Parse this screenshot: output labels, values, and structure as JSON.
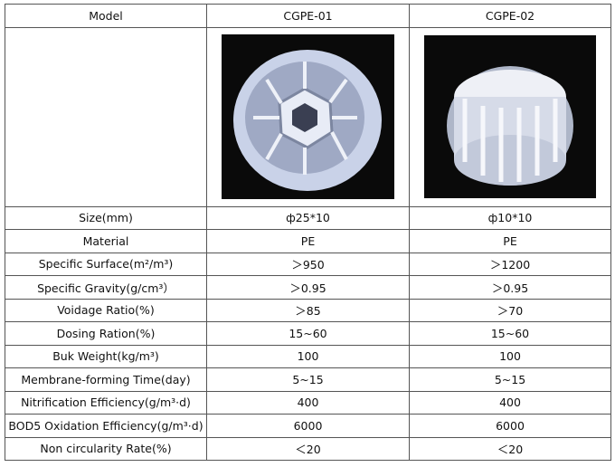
{
  "table": {
    "header": [
      "Model",
      "CGPE-01",
      "CGPE-02"
    ],
    "rows": [
      [
        "Size(mm)",
        "ф25*10",
        "ф10*10"
      ],
      [
        "Material",
        "PE",
        "PE"
      ],
      [
        "Specific Surface(m²/m³)",
        "＞950",
        "＞1200"
      ],
      [
        "Specific Gravity(g/cm³）",
        "＞0.95",
        "＞0.95"
      ],
      [
        "Voidage Ratio(%)",
        "＞85",
        "＞70"
      ],
      [
        "Dosing Ration(%)",
        "15~60",
        "15~60"
      ],
      [
        "Buk Weight(kg/m³)",
        "100",
        "100"
      ],
      [
        "Membrane-forming Time(day)",
        "5~15",
        "5~15"
      ],
      [
        "Nitrification Efficiency(g/m³·d)",
        "400",
        "400"
      ],
      [
        "BOD5 Oxidation Efficiency(g/m³·d)",
        "6000",
        "6000"
      ],
      [
        "Non circularity Rate(%)",
        "＜20",
        "＜20"
      ]
    ]
  }
}
